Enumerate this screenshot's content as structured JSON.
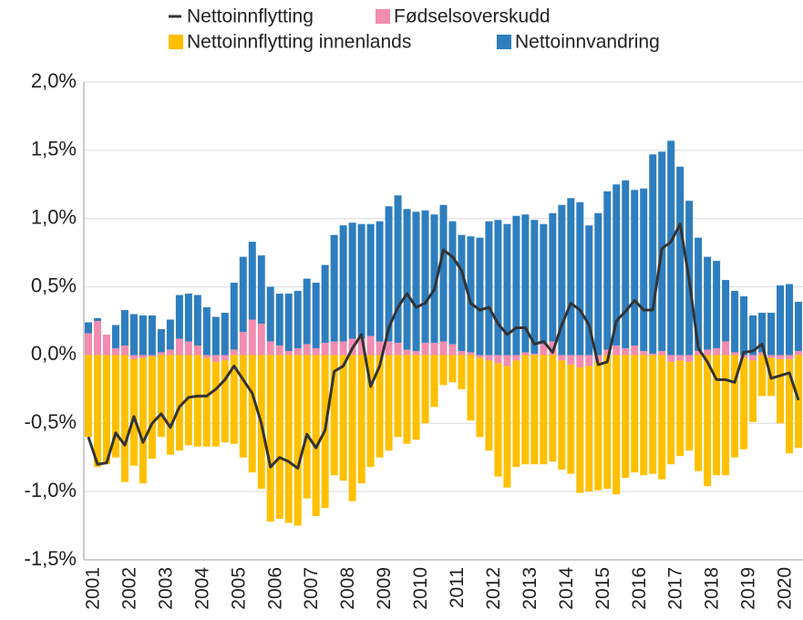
{
  "chart_data": {
    "type": "bar",
    "categories": [
      "2001",
      null,
      null,
      null,
      "2002",
      null,
      null,
      null,
      "2003",
      null,
      null,
      null,
      "2004",
      null,
      null,
      null,
      "2005",
      null,
      null,
      null,
      "2006",
      null,
      null,
      null,
      "2007",
      null,
      null,
      null,
      "2008",
      null,
      null,
      null,
      "2009",
      null,
      null,
      null,
      "2010",
      null,
      null,
      null,
      "2011",
      null,
      null,
      null,
      "2012",
      null,
      null,
      null,
      "2013",
      null,
      null,
      null,
      "2014",
      null,
      null,
      null,
      "2015",
      null,
      null,
      null,
      "2016",
      null,
      null,
      null,
      "2017",
      null,
      null,
      null,
      "2018",
      null,
      null,
      null,
      "2019",
      null,
      null,
      null,
      "2020",
      null,
      null
    ],
    "series": [
      {
        "name": "Nettoinnflytting",
        "type": "line",
        "color": "#333333",
        "values": [
          -0.6,
          -0.8,
          -0.79,
          -0.57,
          -0.66,
          -0.45,
          -0.64,
          -0.5,
          -0.43,
          -0.53,
          -0.38,
          -0.31,
          -0.3,
          -0.3,
          -0.25,
          -0.18,
          -0.08,
          -0.18,
          -0.28,
          -0.5,
          -0.82,
          -0.75,
          -0.78,
          -0.83,
          -0.58,
          -0.68,
          -0.55,
          -0.12,
          -0.08,
          0.05,
          0.15,
          -0.23,
          -0.08,
          0.2,
          0.35,
          0.45,
          0.35,
          0.38,
          0.48,
          0.77,
          0.72,
          0.62,
          0.38,
          0.33,
          0.35,
          0.23,
          0.15,
          0.2,
          0.2,
          0.08,
          0.1,
          0.02,
          0.22,
          0.38,
          0.33,
          0.22,
          -0.07,
          -0.05,
          0.25,
          0.32,
          0.4,
          0.33,
          0.33,
          0.78,
          0.83,
          0.96,
          0.55,
          0.05,
          -0.05,
          -0.18,
          -0.18,
          -0.2,
          0.02,
          0.03,
          0.08,
          -0.17,
          -0.15,
          -0.13,
          -0.33
        ]
      },
      {
        "name": "Fødselsoverskudd",
        "type": "bar",
        "color": "#f28cb1",
        "values": [
          0.16,
          0.25,
          0.15,
          0.05,
          0.07,
          -0.03,
          -0.02,
          -0.01,
          0.02,
          0.04,
          0.12,
          0.1,
          0.07,
          -0.02,
          -0.05,
          -0.04,
          0.04,
          0.17,
          0.26,
          0.23,
          0.1,
          0.07,
          0.03,
          0.05,
          0.08,
          0.05,
          0.09,
          0.1,
          0.1,
          0.12,
          0.12,
          0.14,
          0.1,
          0.1,
          0.09,
          0.04,
          0.03,
          0.09,
          0.09,
          0.1,
          0.08,
          0.03,
          0.02,
          -0.02,
          -0.04,
          -0.06,
          -0.08,
          -0.04,
          0.02,
          0.01,
          0.08,
          0.1,
          -0.04,
          -0.07,
          -0.09,
          -0.08,
          -0.05,
          0.04,
          0.07,
          0.05,
          0.07,
          0.03,
          0.01,
          0.03,
          -0.05,
          -0.04,
          -0.05,
          0.03,
          0.04,
          0.05,
          0.1,
          0.02,
          -0.02,
          -0.04,
          0.02,
          -0.02,
          -0.03,
          -0.03,
          0.03
        ]
      },
      {
        "name": "Nettoinnflytting innenlands",
        "type": "bar",
        "color": "#ffc000",
        "values": [
          -0.6,
          -0.82,
          -0.8,
          -0.75,
          -0.93,
          -0.78,
          -0.92,
          -0.75,
          -0.6,
          -0.73,
          -0.7,
          -0.66,
          -0.67,
          -0.65,
          -0.62,
          -0.6,
          -0.65,
          -0.75,
          -0.86,
          -0.98,
          -1.22,
          -1.2,
          -1.23,
          -1.25,
          -1.05,
          -1.18,
          -1.12,
          -0.88,
          -0.92,
          -1.07,
          -0.94,
          -0.82,
          -0.75,
          -0.7,
          -0.6,
          -0.65,
          -0.62,
          -0.5,
          -0.38,
          -0.22,
          -0.2,
          -0.25,
          -0.48,
          -0.58,
          -0.66,
          -0.83,
          -0.89,
          -0.78,
          -0.8,
          -0.8,
          -0.8,
          -0.78,
          -0.8,
          -0.8,
          -0.92,
          -0.92,
          -0.94,
          -0.98,
          -1.02,
          -0.9,
          -0.86,
          -0.88,
          -0.87,
          -0.91,
          -0.75,
          -0.7,
          -0.65,
          -0.85,
          -0.96,
          -0.88,
          -0.88,
          -0.75,
          -0.67,
          -0.45,
          -0.3,
          -0.28,
          -0.47,
          -0.69,
          -0.68
        ]
      },
      {
        "name": "Nettoinnvandring",
        "type": "bar",
        "color": "#2e7ebf",
        "values": [
          0.08,
          0.02,
          0.0,
          0.17,
          0.26,
          0.3,
          0.29,
          0.29,
          0.17,
          0.22,
          0.32,
          0.35,
          0.37,
          0.35,
          0.28,
          0.31,
          0.49,
          0.55,
          0.57,
          0.5,
          0.4,
          0.38,
          0.42,
          0.42,
          0.48,
          0.48,
          0.57,
          0.78,
          0.85,
          0.85,
          0.84,
          0.82,
          0.88,
          0.99,
          1.08,
          1.03,
          1.02,
          0.97,
          0.94,
          1.0,
          0.9,
          0.85,
          0.85,
          0.86,
          0.98,
          0.99,
          0.96,
          1.02,
          1.01,
          0.98,
          0.88,
          0.94,
          1.1,
          1.15,
          1.12,
          0.95,
          1.04,
          1.16,
          1.18,
          1.23,
          1.14,
          1.19,
          1.46,
          1.46,
          1.57,
          1.38,
          1.13,
          0.83,
          0.68,
          0.64,
          0.45,
          0.45,
          0.43,
          0.29,
          0.29,
          0.31,
          0.51,
          0.52,
          0.36
        ]
      }
    ],
    "ylim": [
      -1.5,
      2.0
    ],
    "yticks": [
      {
        "value": -1.5,
        "label": "-1,5%"
      },
      {
        "value": -1.0,
        "label": "-1,0%"
      },
      {
        "value": -0.5,
        "label": "-0,5%"
      },
      {
        "value": 0,
        "label": "0,0%"
      },
      {
        "value": 0.5,
        "label": "0,5%"
      },
      {
        "value": 1.0,
        "label": "1,0%"
      },
      {
        "value": 1.5,
        "label": "1,5%"
      },
      {
        "value": 2.0,
        "label": "2,0%"
      }
    ],
    "grid": true
  }
}
